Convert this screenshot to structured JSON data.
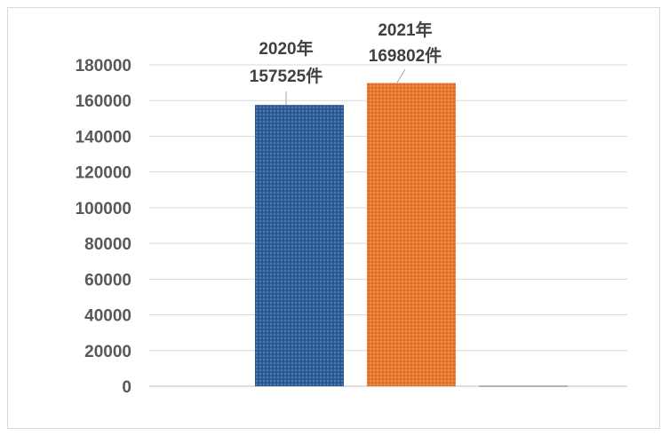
{
  "chart_data": {
    "type": "bar",
    "categories": [
      "2020年",
      "2021年",
      ""
    ],
    "values": [
      157525,
      169802,
      400
    ],
    "colors": [
      "#2e5d9a",
      "#e8782f",
      "#9a9a9a"
    ],
    "bar_pattern": "dotted-texture",
    "data_labels": [
      [
        "2020年",
        "157525件"
      ],
      [
        "2021年",
        "169802件"
      ]
    ],
    "title": "",
    "xlabel": "",
    "ylabel": "",
    "ylim": [
      0,
      180000
    ],
    "yticks": [
      0,
      20000,
      40000,
      60000,
      80000,
      100000,
      120000,
      140000,
      160000,
      180000
    ],
    "ytick_labels": [
      "0",
      "20000",
      "40000",
      "60000",
      "80000",
      "100000",
      "120000",
      "140000",
      "160000",
      "180000"
    ],
    "grid": true,
    "legend": "none"
  }
}
